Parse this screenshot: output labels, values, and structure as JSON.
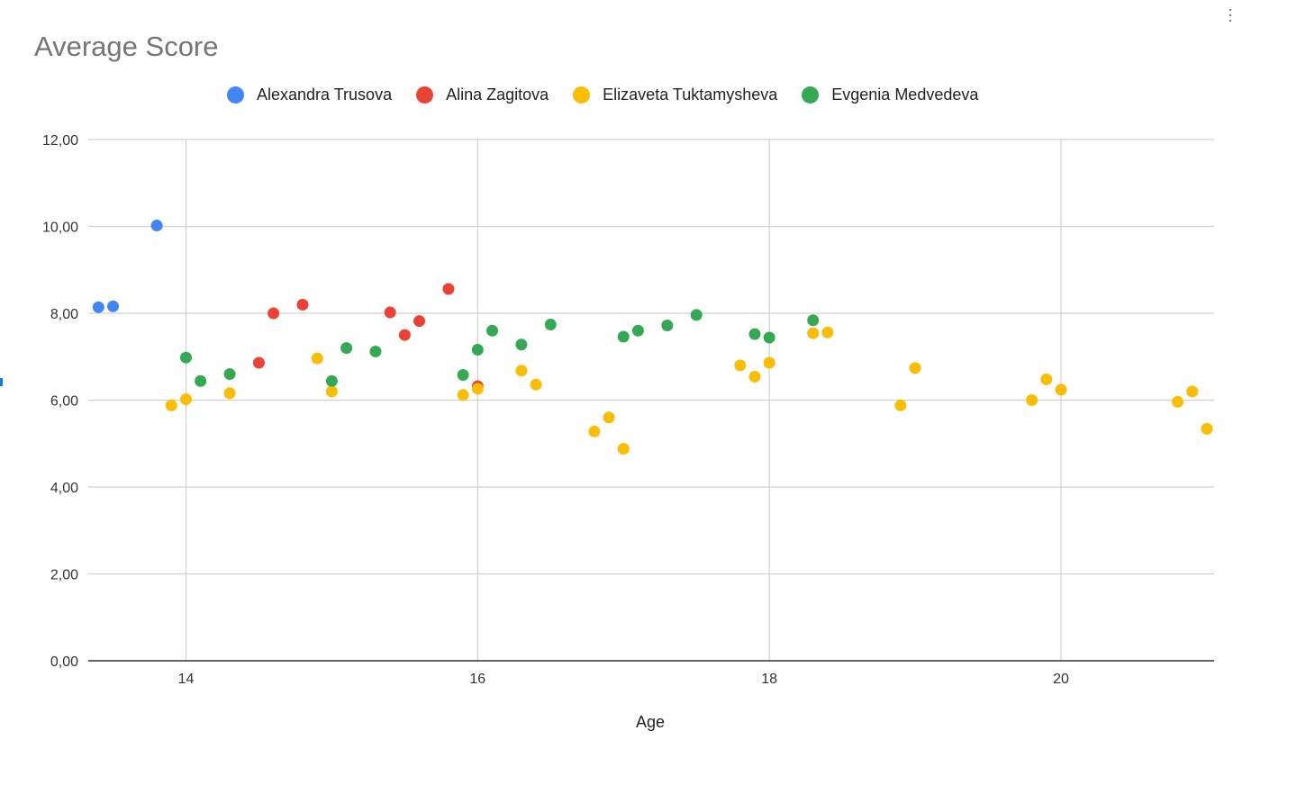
{
  "chart_data": {
    "type": "scatter",
    "title": "Average Score",
    "xlabel": "Age",
    "ylabel": "",
    "xlim": [
      13.33,
      21.05
    ],
    "ylim": [
      0,
      12
    ],
    "x_ticks": [
      "14",
      "16",
      "18",
      "20"
    ],
    "x_tick_values": [
      14,
      16,
      18,
      20
    ],
    "y_ticks": [
      "0,00",
      "2,00",
      "4,00",
      "6,00",
      "8,00",
      "10,00",
      "12,00"
    ],
    "y_tick_values": [
      0,
      2,
      4,
      6,
      8,
      10,
      12
    ],
    "grid": true,
    "legend_position": "top",
    "series": [
      {
        "name": "Alexandra Trusova",
        "color": "#4285f4",
        "points": [
          [
            13.4,
            8.14
          ],
          [
            13.5,
            8.16
          ],
          [
            13.8,
            10.02
          ]
        ]
      },
      {
        "name": "Alina Zagitova",
        "color": "#ea4335",
        "points": [
          [
            14.5,
            6.86
          ],
          [
            14.6,
            8.0
          ],
          [
            14.8,
            8.2
          ],
          [
            15.4,
            8.02
          ],
          [
            15.5,
            7.5
          ],
          [
            15.6,
            7.82
          ],
          [
            15.8,
            8.56
          ],
          [
            16.0,
            6.32
          ]
        ]
      },
      {
        "name": "Elizaveta Tuktamysheva",
        "color": "#fbbc04",
        "points": [
          [
            13.9,
            5.88
          ],
          [
            14.0,
            6.02
          ],
          [
            14.3,
            6.16
          ],
          [
            14.9,
            6.96
          ],
          [
            15.0,
            6.2
          ],
          [
            15.9,
            6.12
          ],
          [
            16.0,
            6.26
          ],
          [
            16.3,
            6.68
          ],
          [
            16.4,
            6.36
          ],
          [
            16.8,
            5.28
          ],
          [
            16.9,
            5.6
          ],
          [
            17.0,
            4.88
          ],
          [
            17.8,
            6.8
          ],
          [
            17.9,
            6.54
          ],
          [
            18.0,
            6.86
          ],
          [
            18.3,
            7.54
          ],
          [
            18.4,
            7.56
          ],
          [
            18.9,
            5.88
          ],
          [
            19.0,
            6.74
          ],
          [
            19.8,
            6.0
          ],
          [
            19.9,
            6.48
          ],
          [
            20.0,
            6.24
          ],
          [
            20.8,
            5.96
          ],
          [
            20.9,
            6.2
          ],
          [
            21.0,
            5.34
          ]
        ]
      },
      {
        "name": "Evgenia Medvedeva",
        "color": "#34a853",
        "points": [
          [
            14.0,
            6.98
          ],
          [
            14.1,
            6.44
          ],
          [
            14.3,
            6.6
          ],
          [
            15.0,
            6.44
          ],
          [
            15.1,
            7.2
          ],
          [
            15.3,
            7.12
          ],
          [
            15.9,
            6.58
          ],
          [
            16.0,
            7.16
          ],
          [
            16.1,
            7.6
          ],
          [
            16.3,
            7.28
          ],
          [
            16.5,
            7.74
          ],
          [
            17.0,
            7.46
          ],
          [
            17.1,
            7.6
          ],
          [
            17.3,
            7.72
          ],
          [
            17.5,
            7.96
          ],
          [
            17.9,
            7.52
          ],
          [
            18.0,
            7.44
          ],
          [
            18.3,
            7.84
          ]
        ]
      }
    ]
  }
}
